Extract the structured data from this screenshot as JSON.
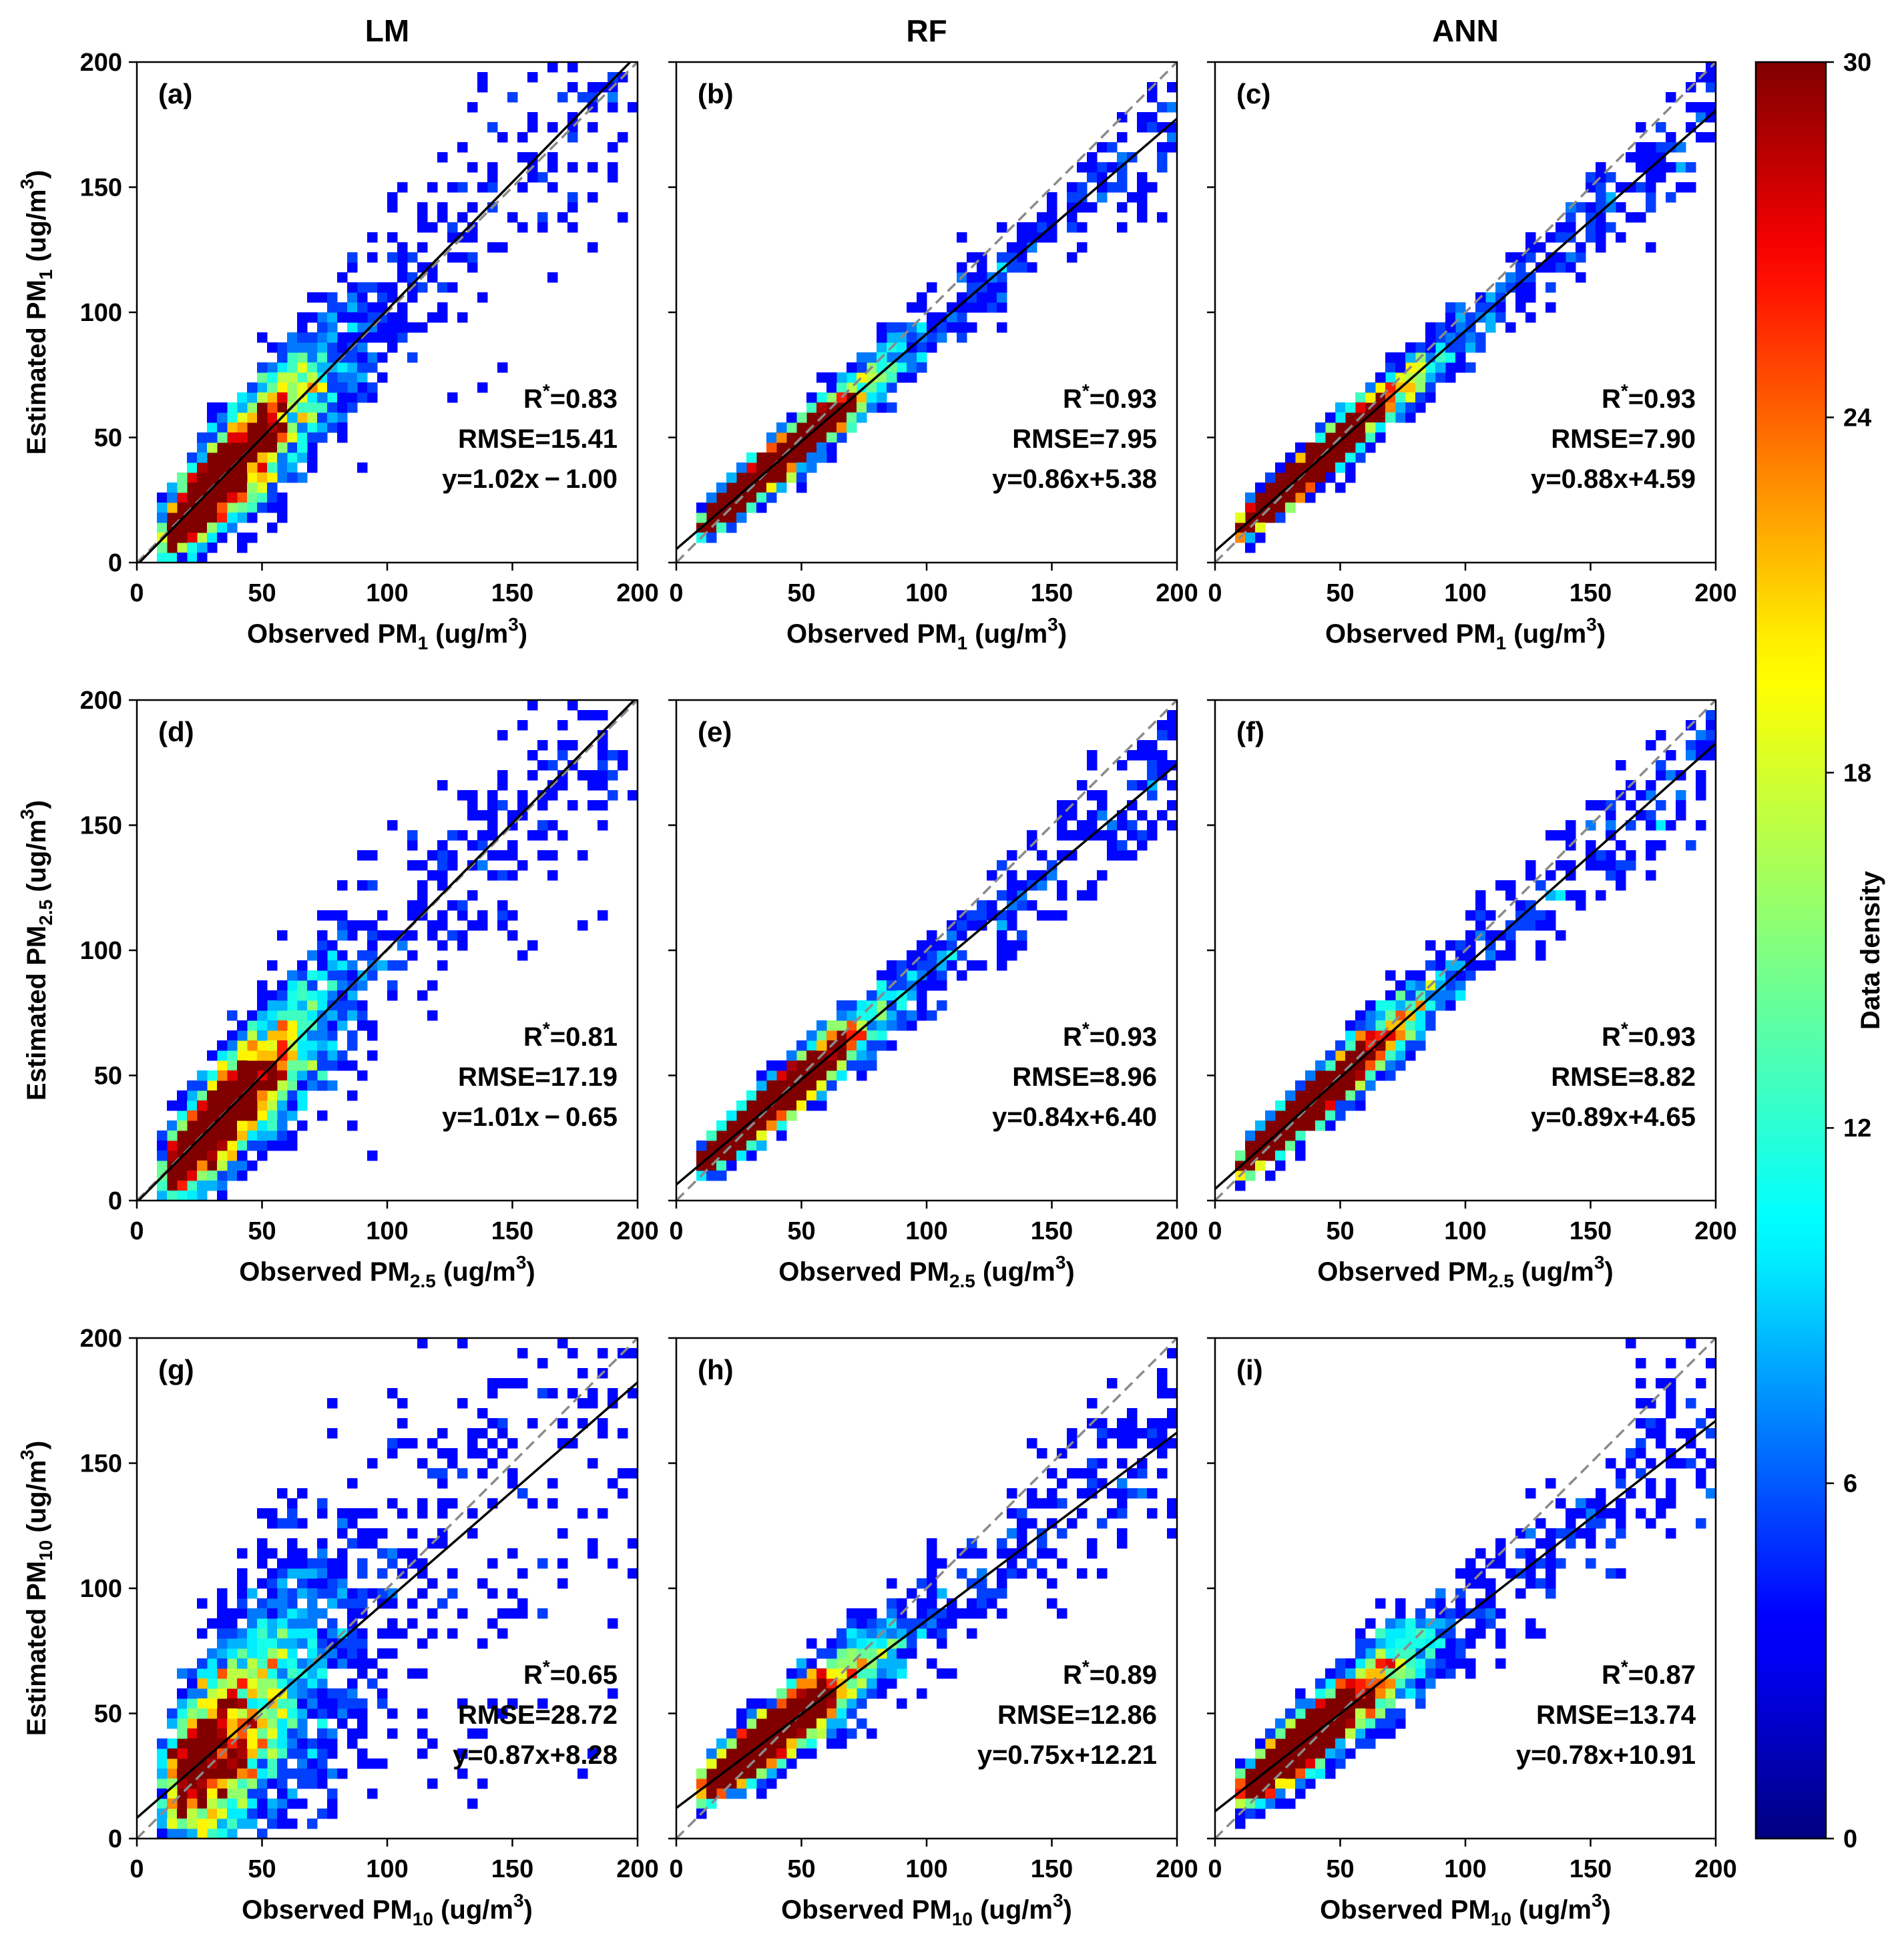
{
  "chart_data": {
    "type": "scatter",
    "subtype": "2d-density-histogram",
    "columns": [
      "LM",
      "RF",
      "ANN"
    ],
    "axis": {
      "xlim": [
        0,
        200
      ],
      "ylim": [
        0,
        200
      ],
      "ticks": [
        0,
        50,
        100,
        150,
        200
      ]
    },
    "reference_line": "y = x (dashed gray)",
    "colorbar": {
      "label": "Data density",
      "min": 0,
      "max": 30,
      "ticks": [
        0,
        6,
        12,
        18,
        24,
        30
      ],
      "colormap": "jet",
      "colors": [
        "#00007f",
        "#0000ff",
        "#0080ff",
        "#00ffff",
        "#80ff80",
        "#ffff00",
        "#ff8000",
        "#ff0000",
        "#7f0000"
      ]
    },
    "panels": [
      {
        "label": "(a)",
        "column": "LM",
        "pollutant": "PM1",
        "sub": "1",
        "r_text": "=0.83",
        "r": 0.83,
        "rmse_text": "RMSE=15.41",
        "rmse": 15.41,
        "eq_text": "y=1.02x − 1.00",
        "slope": 1.02,
        "intercept": -1.0,
        "spread": 15,
        "noise_scale": 1.3
      },
      {
        "label": "(b)",
        "column": "RF",
        "pollutant": "PM1",
        "sub": "1",
        "r_text": "=0.93",
        "r": 0.93,
        "rmse_text": "RMSE=7.95",
        "rmse": 7.95,
        "eq_text": "y=0.86x+5.38",
        "slope": 0.86,
        "intercept": 5.38,
        "spread": 8,
        "noise_scale": 0.9
      },
      {
        "label": "(c)",
        "column": "ANN",
        "pollutant": "PM1",
        "sub": "1",
        "r_text": "=0.93",
        "r": 0.93,
        "rmse_text": "RMSE=7.90",
        "rmse": 7.9,
        "eq_text": "y=0.88x+4.59",
        "slope": 0.88,
        "intercept": 4.59,
        "spread": 8,
        "noise_scale": 0.9
      },
      {
        "label": "(d)",
        "column": "LM",
        "pollutant": "PM2.5",
        "sub": "2.5",
        "r_text": "=0.81",
        "r": 0.81,
        "rmse_text": "RMSE=17.19",
        "rmse": 17.19,
        "eq_text": "y=1.01x − 0.65",
        "slope": 1.01,
        "intercept": -0.65,
        "spread": 16,
        "noise_scale": 1.3
      },
      {
        "label": "(e)",
        "column": "RF",
        "pollutant": "PM2.5",
        "sub": "2.5",
        "r_text": "=0.93",
        "r": 0.93,
        "rmse_text": "RMSE=8.96",
        "rmse": 8.96,
        "eq_text": "y=0.84x+6.40",
        "slope": 0.84,
        "intercept": 6.4,
        "spread": 9,
        "noise_scale": 0.9
      },
      {
        "label": "(f)",
        "column": "ANN",
        "pollutant": "PM2.5",
        "sub": "2.5",
        "r_text": "=0.93",
        "r": 0.93,
        "rmse_text": "RMSE=8.82",
        "rmse": 8.82,
        "eq_text": "y=0.89x+4.65",
        "slope": 0.89,
        "intercept": 4.65,
        "spread": 9,
        "noise_scale": 0.9
      },
      {
        "label": "(g)",
        "column": "LM",
        "pollutant": "PM10",
        "sub": "10",
        "r_text": "=0.65",
        "r": 0.65,
        "rmse_text": "RMSE=28.72",
        "rmse": 28.72,
        "eq_text": "y=0.87x+8.28",
        "slope": 0.87,
        "intercept": 8.28,
        "spread": 24,
        "noise_scale": 1.6
      },
      {
        "label": "(h)",
        "column": "RF",
        "pollutant": "PM10",
        "sub": "10",
        "r_text": "=0.89",
        "r": 0.89,
        "rmse_text": "RMSE=12.86",
        "rmse": 12.86,
        "eq_text": "y=0.75x+12.21",
        "slope": 0.75,
        "intercept": 12.21,
        "spread": 11,
        "noise_scale": 1.0
      },
      {
        "label": "(i)",
        "column": "ANN",
        "pollutant": "PM10",
        "sub": "10",
        "r_text": "=0.87",
        "r": 0.87,
        "rmse_text": "RMSE=13.74",
        "rmse": 13.74,
        "eq_text": "y=0.78x+10.91",
        "slope": 0.78,
        "intercept": 10.91,
        "spread": 12,
        "noise_scale": 1.0
      }
    ],
    "xlabel_prefix": "Observed PM",
    "ylabel_prefix": "Estimated PM",
    "unit_prefix": " (ug/m",
    "unit_exp": "3",
    "unit_suffix": ")",
    "r_symbol": "R",
    "r_sup": "*"
  }
}
